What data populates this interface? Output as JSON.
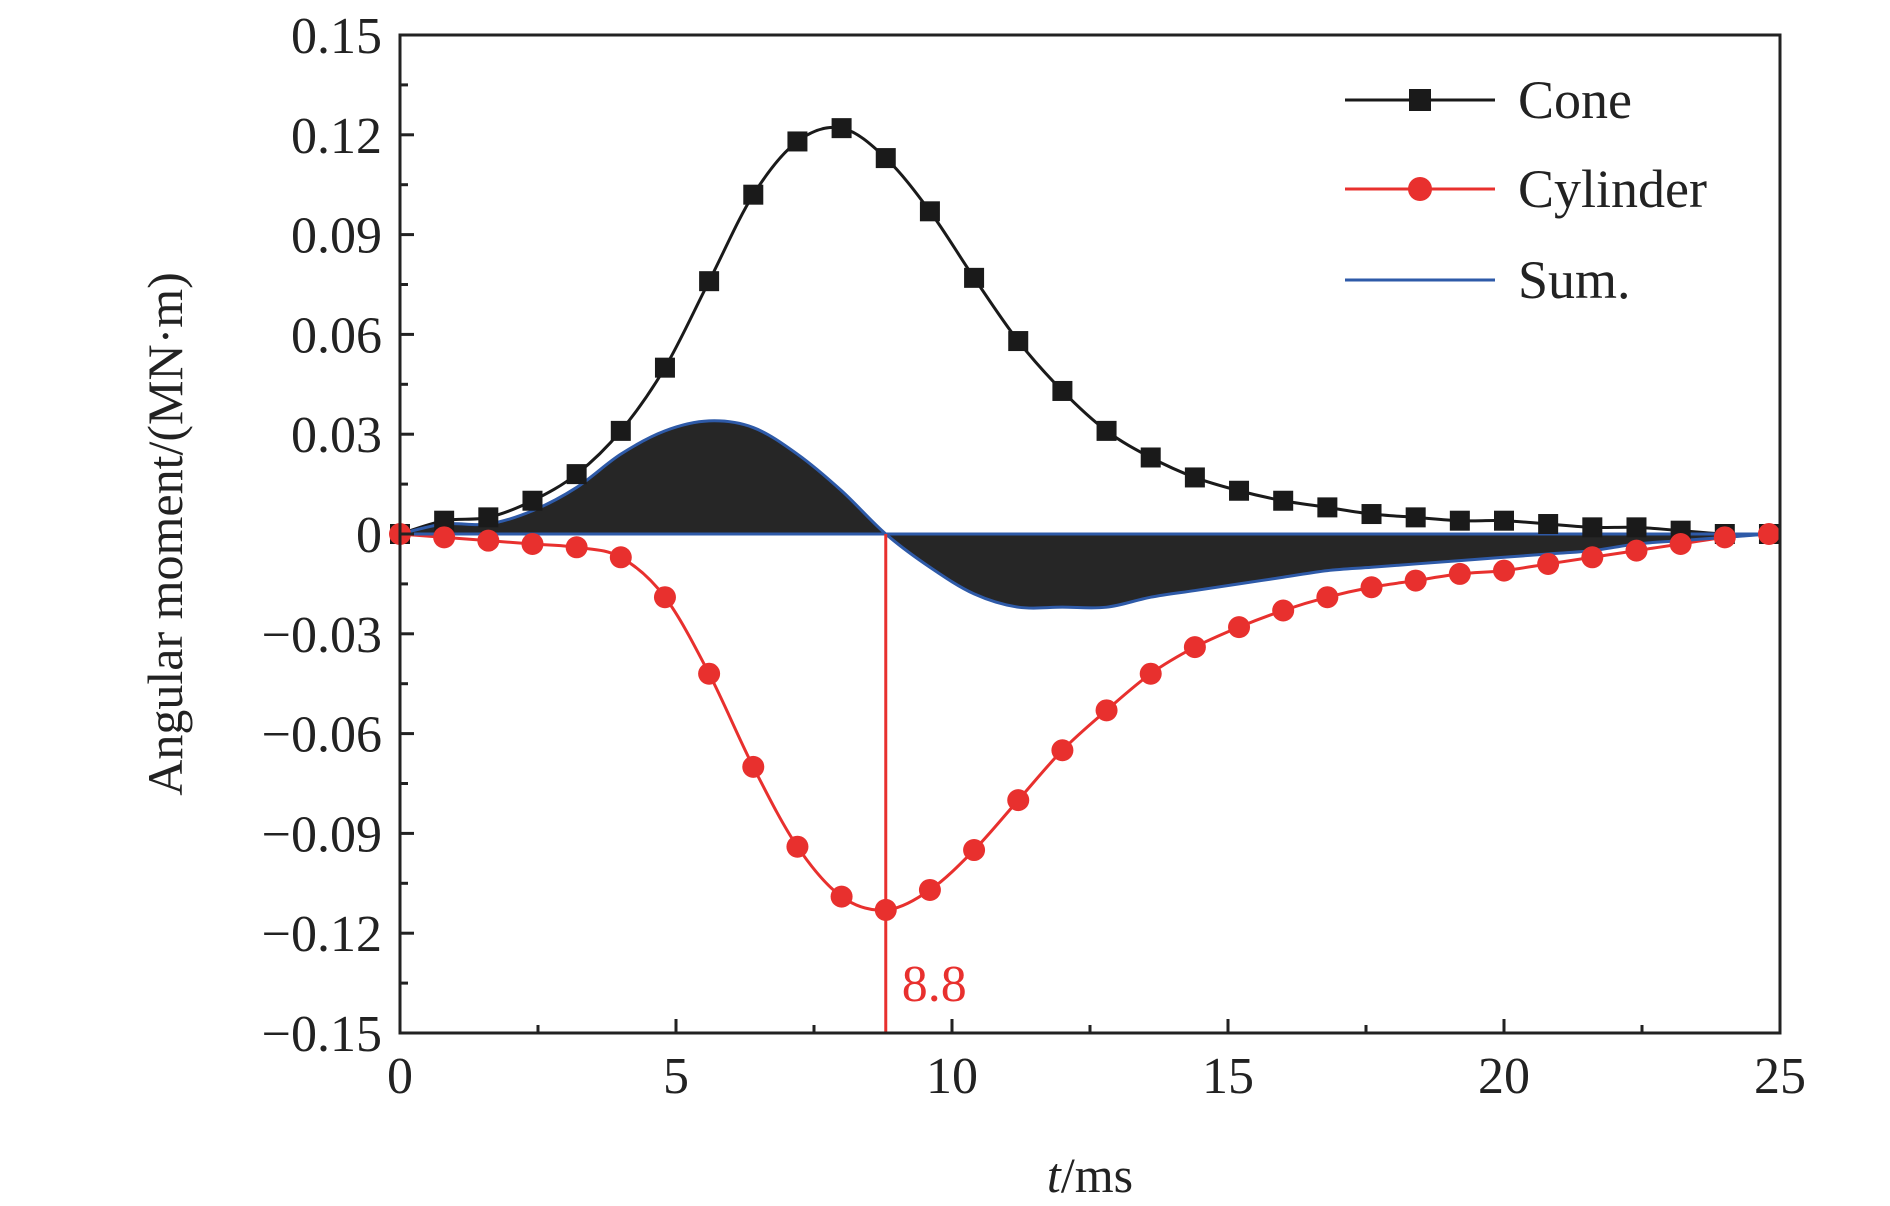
{
  "chart_data": {
    "type": "line",
    "xlabel": "/ms",
    "xlabel_italic_prefix": "t",
    "ylabel": "Angular moment/(MN·m)",
    "xlim": [
      0,
      25
    ],
    "ylim": [
      -0.15,
      0.15
    ],
    "x_ticks": [
      0,
      5,
      10,
      15,
      20,
      25
    ],
    "x_tick_labels": [
      "0",
      "5",
      "10",
      "15",
      "20",
      "25"
    ],
    "y_ticks": [
      0.15,
      0.12,
      0.09,
      0.06,
      0.03,
      0,
      -0.03,
      -0.06,
      -0.09,
      -0.12,
      -0.15
    ],
    "y_tick_labels": [
      "0.15",
      "0.12",
      "0.09",
      "0.06",
      "0.03",
      "0",
      "−0.03",
      "−0.06",
      "−0.09",
      "−0.12",
      "−0.15"
    ],
    "grid": false,
    "legend_position": "top-right",
    "series": [
      {
        "name": "Cone",
        "color": "#1a1a1a",
        "marker": "square",
        "x": [
          0,
          0.8,
          1.6,
          2.4,
          3.2,
          4.0,
          4.8,
          5.6,
          6.4,
          7.2,
          8.0,
          8.8,
          9.6,
          10.4,
          11.2,
          12.0,
          12.8,
          13.6,
          14.4,
          15.2,
          16.0,
          16.8,
          17.6,
          18.4,
          19.2,
          20.0,
          20.8,
          21.6,
          22.4,
          23.2,
          24.0,
          24.8
        ],
        "values": [
          0.0,
          0.004,
          0.005,
          0.01,
          0.018,
          0.031,
          0.05,
          0.076,
          0.102,
          0.118,
          0.122,
          0.113,
          0.097,
          0.077,
          0.058,
          0.043,
          0.031,
          0.023,
          0.017,
          0.013,
          0.01,
          0.008,
          0.006,
          0.005,
          0.004,
          0.004,
          0.003,
          0.002,
          0.002,
          0.001,
          0.0,
          0.0
        ]
      },
      {
        "name": "Cylinder",
        "color": "#e8302e",
        "marker": "circle",
        "x": [
          0,
          0.8,
          1.6,
          2.4,
          3.2,
          4.0,
          4.8,
          5.6,
          6.4,
          7.2,
          8.0,
          8.8,
          9.6,
          10.4,
          11.2,
          12.0,
          12.8,
          13.6,
          14.4,
          15.2,
          16.0,
          16.8,
          17.6,
          18.4,
          19.2,
          20.0,
          20.8,
          21.6,
          22.4,
          23.2,
          24.0,
          24.8
        ],
        "values": [
          0.0,
          -0.001,
          -0.002,
          -0.003,
          -0.004,
          -0.007,
          -0.019,
          -0.042,
          -0.07,
          -0.094,
          -0.109,
          -0.113,
          -0.107,
          -0.095,
          -0.08,
          -0.065,
          -0.053,
          -0.042,
          -0.034,
          -0.028,
          -0.023,
          -0.019,
          -0.016,
          -0.014,
          -0.012,
          -0.011,
          -0.009,
          -0.007,
          -0.005,
          -0.003,
          -0.001,
          0.0
        ]
      },
      {
        "name": "Sum.",
        "color": "#2e5aa8",
        "marker": "none",
        "filled_to_zero": true,
        "fill_color": "#262626",
        "x": [
          0,
          0.8,
          1.6,
          2.4,
          3.2,
          4.0,
          4.8,
          5.6,
          6.4,
          7.2,
          8.0,
          8.8,
          9.6,
          10.4,
          11.2,
          12.0,
          12.8,
          13.6,
          14.4,
          15.2,
          16.0,
          16.8,
          17.6,
          18.4,
          19.2,
          20.0,
          20.8,
          21.6,
          22.4,
          23.2,
          24.0,
          24.8
        ],
        "values": [
          0.0,
          0.003,
          0.003,
          0.007,
          0.014,
          0.024,
          0.031,
          0.034,
          0.032,
          0.024,
          0.013,
          0.0,
          -0.01,
          -0.018,
          -0.022,
          -0.022,
          -0.022,
          -0.019,
          -0.017,
          -0.015,
          -0.013,
          -0.011,
          -0.01,
          -0.009,
          -0.008,
          -0.007,
          -0.006,
          -0.005,
          -0.003,
          -0.002,
          -0.001,
          0.0
        ]
      }
    ],
    "annotations": [
      {
        "type": "vertical-line",
        "x": 8.8,
        "label": "8.8",
        "color": "#e8302e"
      }
    ]
  }
}
